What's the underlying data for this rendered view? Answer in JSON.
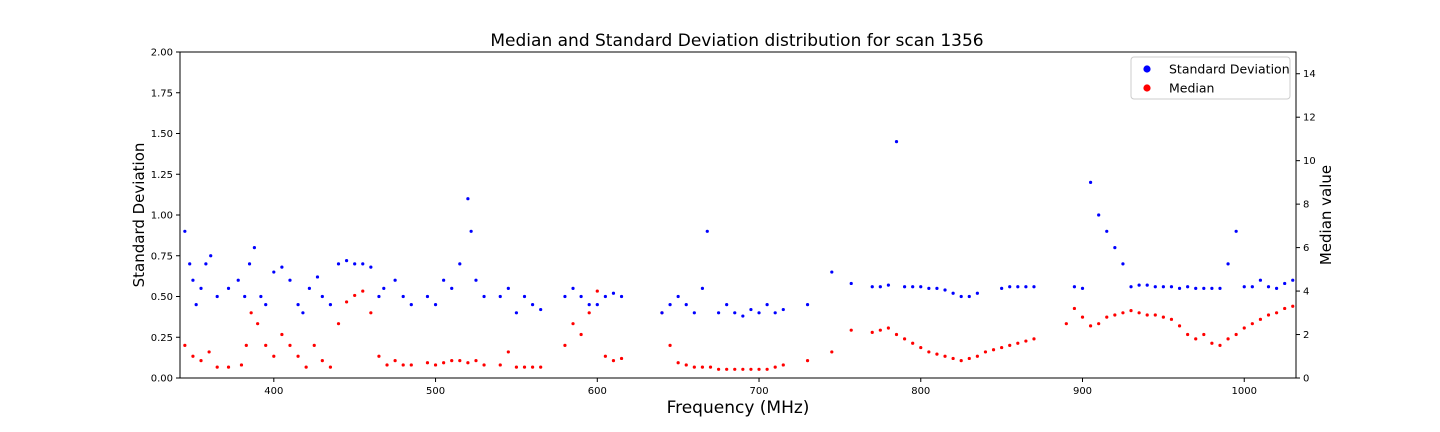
{
  "chart_data": {
    "type": "scatter",
    "title": "Median and Standard Deviation distribution for scan 1356",
    "xlabel": "Frequency (MHz)",
    "ylabel_left": "Standard Deviation",
    "ylabel_right": "Median value",
    "xlim": [
      342,
      1032
    ],
    "ylim_left": [
      0,
      2.0
    ],
    "ylim_right": [
      0,
      15
    ],
    "x_ticks": [
      400,
      500,
      600,
      700,
      800,
      900,
      1000
    ],
    "y_ticks_left": [
      "0.00",
      "0.25",
      "0.50",
      "0.75",
      "1.00",
      "1.25",
      "1.50",
      "1.75",
      "2.00"
    ],
    "y_ticks_right": [
      "0",
      "2",
      "4",
      "6",
      "8",
      "10",
      "12",
      "14"
    ],
    "grid": false,
    "legend_position": "top-right",
    "series": [
      {
        "name": "Standard Deviation",
        "axis": "left",
        "color": "#0000ff",
        "points": [
          [
            345,
            0.9
          ],
          [
            348,
            0.7
          ],
          [
            350,
            0.6
          ],
          [
            352,
            0.45
          ],
          [
            355,
            0.55
          ],
          [
            358,
            0.7
          ],
          [
            361,
            0.75
          ],
          [
            365,
            0.5
          ],
          [
            372,
            0.55
          ],
          [
            378,
            0.6
          ],
          [
            382,
            0.5
          ],
          [
            385,
            0.7
          ],
          [
            388,
            0.8
          ],
          [
            392,
            0.5
          ],
          [
            395,
            0.45
          ],
          [
            400,
            0.65
          ],
          [
            405,
            0.68
          ],
          [
            410,
            0.6
          ],
          [
            415,
            0.45
          ],
          [
            418,
            0.4
          ],
          [
            422,
            0.55
          ],
          [
            427,
            0.62
          ],
          [
            430,
            0.5
          ],
          [
            435,
            0.45
          ],
          [
            440,
            0.7
          ],
          [
            445,
            0.72
          ],
          [
            450,
            0.7
          ],
          [
            455,
            0.7
          ],
          [
            460,
            0.68
          ],
          [
            465,
            0.5
          ],
          [
            468,
            0.55
          ],
          [
            475,
            0.6
          ],
          [
            480,
            0.5
          ],
          [
            485,
            0.45
          ],
          [
            495,
            0.5
          ],
          [
            500,
            0.45
          ],
          [
            505,
            0.6
          ],
          [
            510,
            0.55
          ],
          [
            515,
            0.7
          ],
          [
            520,
            1.1
          ],
          [
            522,
            0.9
          ],
          [
            525,
            0.6
          ],
          [
            530,
            0.5
          ],
          [
            540,
            0.5
          ],
          [
            545,
            0.55
          ],
          [
            550,
            0.4
          ],
          [
            555,
            0.5
          ],
          [
            560,
            0.45
          ],
          [
            565,
            0.42
          ],
          [
            580,
            0.5
          ],
          [
            585,
            0.55
          ],
          [
            590,
            0.5
          ],
          [
            595,
            0.45
          ],
          [
            600,
            0.45
          ],
          [
            605,
            0.5
          ],
          [
            610,
            0.52
          ],
          [
            615,
            0.5
          ],
          [
            640,
            0.4
          ],
          [
            645,
            0.45
          ],
          [
            650,
            0.5
          ],
          [
            655,
            0.45
          ],
          [
            660,
            0.4
          ],
          [
            665,
            0.55
          ],
          [
            668,
            0.9
          ],
          [
            675,
            0.4
          ],
          [
            680,
            0.45
          ],
          [
            685,
            0.4
          ],
          [
            690,
            0.38
          ],
          [
            695,
            0.42
          ],
          [
            700,
            0.4
          ],
          [
            705,
            0.45
          ],
          [
            710,
            0.4
          ],
          [
            715,
            0.42
          ],
          [
            730,
            0.45
          ],
          [
            745,
            0.65
          ],
          [
            757,
            0.58
          ],
          [
            770,
            0.56
          ],
          [
            775,
            0.56
          ],
          [
            780,
            0.57
          ],
          [
            785,
            1.45
          ],
          [
            790,
            0.56
          ],
          [
            795,
            0.56
          ],
          [
            800,
            0.56
          ],
          [
            805,
            0.55
          ],
          [
            810,
            0.55
          ],
          [
            815,
            0.54
          ],
          [
            820,
            0.52
          ],
          [
            825,
            0.5
          ],
          [
            830,
            0.5
          ],
          [
            835,
            0.52
          ],
          [
            850,
            0.55
          ],
          [
            855,
            0.56
          ],
          [
            860,
            0.56
          ],
          [
            865,
            0.56
          ],
          [
            870,
            0.56
          ],
          [
            895,
            0.56
          ],
          [
            900,
            0.55
          ],
          [
            905,
            1.2
          ],
          [
            910,
            1.0
          ],
          [
            915,
            0.9
          ],
          [
            920,
            0.8
          ],
          [
            925,
            0.7
          ],
          [
            930,
            0.56
          ],
          [
            935,
            0.57
          ],
          [
            940,
            0.57
          ],
          [
            945,
            0.56
          ],
          [
            950,
            0.56
          ],
          [
            955,
            0.56
          ],
          [
            960,
            0.55
          ],
          [
            965,
            0.56
          ],
          [
            970,
            0.55
          ],
          [
            975,
            0.55
          ],
          [
            980,
            0.55
          ],
          [
            985,
            0.55
          ],
          [
            990,
            0.7
          ],
          [
            995,
            0.9
          ],
          [
            1000,
            0.56
          ],
          [
            1005,
            0.56
          ],
          [
            1010,
            0.6
          ],
          [
            1015,
            0.56
          ],
          [
            1020,
            0.55
          ],
          [
            1025,
            0.58
          ],
          [
            1030,
            0.6
          ]
        ]
      },
      {
        "name": "Median",
        "axis": "right",
        "color": "#ff0000",
        "points": [
          [
            345,
            1.5
          ],
          [
            350,
            1.0
          ],
          [
            355,
            0.8
          ],
          [
            360,
            1.2
          ],
          [
            365,
            0.5
          ],
          [
            372,
            0.5
          ],
          [
            380,
            0.6
          ],
          [
            383,
            1.5
          ],
          [
            386,
            3.0
          ],
          [
            390,
            2.5
          ],
          [
            395,
            1.5
          ],
          [
            400,
            1.0
          ],
          [
            405,
            2.0
          ],
          [
            410,
            1.5
          ],
          [
            415,
            1.0
          ],
          [
            420,
            0.5
          ],
          [
            425,
            1.5
          ],
          [
            430,
            0.8
          ],
          [
            435,
            0.5
          ],
          [
            440,
            2.5
          ],
          [
            445,
            3.5
          ],
          [
            450,
            3.8
          ],
          [
            455,
            4.0
          ],
          [
            460,
            3.0
          ],
          [
            465,
            1.0
          ],
          [
            470,
            0.6
          ],
          [
            475,
            0.8
          ],
          [
            480,
            0.6
          ],
          [
            485,
            0.6
          ],
          [
            495,
            0.7
          ],
          [
            500,
            0.6
          ],
          [
            505,
            0.7
          ],
          [
            510,
            0.8
          ],
          [
            515,
            0.8
          ],
          [
            520,
            0.7
          ],
          [
            525,
            0.8
          ],
          [
            530,
            0.6
          ],
          [
            540,
            0.6
          ],
          [
            545,
            1.2
          ],
          [
            550,
            0.5
          ],
          [
            555,
            0.5
          ],
          [
            560,
            0.5
          ],
          [
            565,
            0.5
          ],
          [
            580,
            1.5
          ],
          [
            585,
            2.5
          ],
          [
            590,
            2.0
          ],
          [
            595,
            3.0
          ],
          [
            600,
            4.0
          ],
          [
            605,
            1.0
          ],
          [
            610,
            0.8
          ],
          [
            615,
            0.9
          ],
          [
            640,
            3.0
          ],
          [
            645,
            1.5
          ],
          [
            650,
            0.7
          ],
          [
            655,
            0.6
          ],
          [
            660,
            0.5
          ],
          [
            665,
            0.5
          ],
          [
            670,
            0.5
          ],
          [
            675,
            0.4
          ],
          [
            680,
            0.4
          ],
          [
            685,
            0.4
          ],
          [
            690,
            0.4
          ],
          [
            695,
            0.4
          ],
          [
            700,
            0.4
          ],
          [
            705,
            0.4
          ],
          [
            710,
            0.5
          ],
          [
            715,
            0.6
          ],
          [
            730,
            0.8
          ],
          [
            745,
            1.2
          ],
          [
            757,
            2.2
          ],
          [
            770,
            2.1
          ],
          [
            775,
            2.2
          ],
          [
            780,
            2.3
          ],
          [
            785,
            2.0
          ],
          [
            790,
            1.8
          ],
          [
            795,
            1.6
          ],
          [
            800,
            1.4
          ],
          [
            805,
            1.2
          ],
          [
            810,
            1.1
          ],
          [
            815,
            1.0
          ],
          [
            820,
            0.9
          ],
          [
            825,
            0.8
          ],
          [
            830,
            0.9
          ],
          [
            835,
            1.0
          ],
          [
            840,
            1.2
          ],
          [
            845,
            1.3
          ],
          [
            850,
            1.4
          ],
          [
            855,
            1.5
          ],
          [
            860,
            1.6
          ],
          [
            865,
            1.7
          ],
          [
            870,
            1.8
          ],
          [
            890,
            2.5
          ],
          [
            895,
            3.2
          ],
          [
            900,
            2.8
          ],
          [
            905,
            2.4
          ],
          [
            910,
            2.5
          ],
          [
            915,
            2.8
          ],
          [
            920,
            2.9
          ],
          [
            925,
            3.0
          ],
          [
            930,
            3.1
          ],
          [
            935,
            3.0
          ],
          [
            940,
            2.9
          ],
          [
            945,
            2.9
          ],
          [
            950,
            2.8
          ],
          [
            955,
            2.7
          ],
          [
            960,
            2.4
          ],
          [
            965,
            2.0
          ],
          [
            970,
            1.8
          ],
          [
            975,
            2.0
          ],
          [
            980,
            1.6
          ],
          [
            985,
            1.5
          ],
          [
            990,
            1.8
          ],
          [
            995,
            2.0
          ],
          [
            1000,
            2.3
          ],
          [
            1005,
            2.5
          ],
          [
            1010,
            2.7
          ],
          [
            1015,
            2.9
          ],
          [
            1020,
            3.0
          ],
          [
            1025,
            3.2
          ],
          [
            1030,
            3.3
          ]
        ]
      }
    ]
  }
}
